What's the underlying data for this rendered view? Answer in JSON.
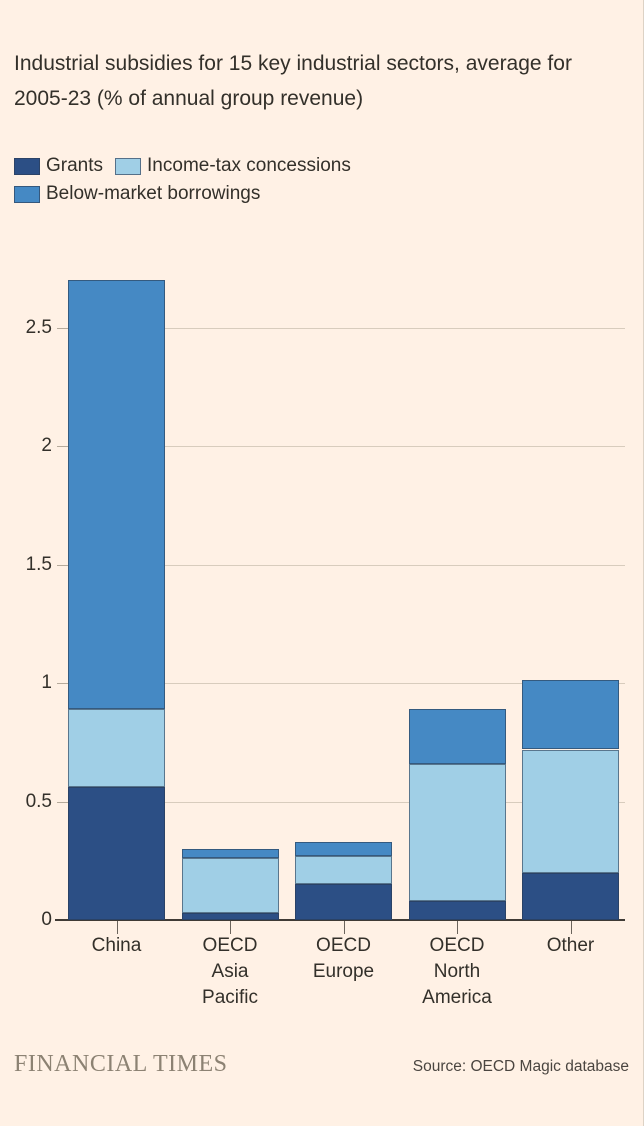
{
  "title": "Industrial subsidies for 15 key industrial sectors, average for 2005-23 (% of annual group revenue)",
  "legend": {
    "rows": [
      [
        0,
        1
      ],
      [
        2
      ]
    ],
    "items": [
      {
        "label": "Grants",
        "color": "#2c4f85"
      },
      {
        "label": "Income-tax concessions",
        "color": "#a0cfe6"
      },
      {
        "label": "Below-market borrowings",
        "color": "#4589c4"
      }
    ]
  },
  "footer": {
    "brand": "FINANCIAL TIMES",
    "source": "Source: OECD Magic database"
  },
  "colors": {
    "background": "#fff1e5",
    "text": "#33302a",
    "gridline": "#d8ccbd",
    "axis": "#403b35",
    "grants": "#2c4f85",
    "income_tax": "#a0cfe6",
    "below_market": "#4589c4"
  },
  "chart_data": {
    "type": "bar",
    "stacked": true,
    "title": "Industrial subsidies for 15 key industrial sectors, average for 2005-23 (% of annual group revenue)",
    "categories": [
      "China",
      "OECD Asia Pacific",
      "OECD Europe",
      "OECD North America",
      "Other"
    ],
    "category_lines": [
      [
        "China"
      ],
      [
        "OECD",
        "Asia",
        "Pacific"
      ],
      [
        "OECD",
        "Europe"
      ],
      [
        "OECD",
        "North",
        "America"
      ],
      [
        "Other"
      ]
    ],
    "series": [
      {
        "name": "Grants",
        "color": "#2c4f85",
        "values": [
          0.56,
          0.03,
          0.15,
          0.08,
          0.2
        ]
      },
      {
        "name": "Income-tax concessions",
        "color": "#a0cfe6",
        "values": [
          0.33,
          0.23,
          0.12,
          0.58,
          0.52
        ]
      },
      {
        "name": "Below-market borrowings",
        "color": "#4589c4",
        "values": [
          1.81,
          0.04,
          0.06,
          0.23,
          0.29
        ]
      }
    ],
    "totals": [
      2.7,
      0.3,
      0.33,
      0.89,
      1.01
    ],
    "xlabel": "",
    "ylabel": "",
    "ylim": [
      0,
      2.7
    ],
    "yticks": [
      0,
      0.5,
      1,
      1.5,
      2,
      2.5
    ],
    "grid": true,
    "legend_position": "top-left"
  }
}
